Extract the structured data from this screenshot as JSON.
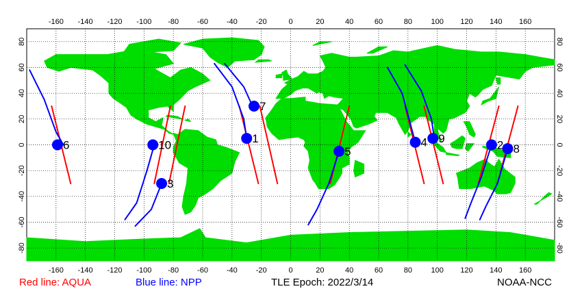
{
  "map": {
    "projection": "equirectangular",
    "lon_range": [
      -180,
      180
    ],
    "lat_range": [
      -90,
      90
    ],
    "lon_ticks": [
      -160,
      -140,
      -120,
      -100,
      -80,
      -60,
      -40,
      -20,
      0,
      20,
      40,
      60,
      80,
      100,
      120,
      140,
      160
    ],
    "lat_ticks": [
      -80,
      -60,
      -40,
      -20,
      0,
      20,
      40,
      60,
      80
    ],
    "grid": true,
    "colors": {
      "land": "#00dd00",
      "ocean": "#ffffff",
      "grid": "#000000",
      "aqua": "#ff0000",
      "npp": "#0000ff",
      "marker": "#0000ff"
    }
  },
  "legend": {
    "aqua_label": "Red line: AQUA",
    "npp_label": "Blue line: NPP",
    "epoch_label": "TLE Epoch: 2022/3/14",
    "credit": "NOAA-NCC"
  },
  "markers": [
    {
      "label": "1",
      "lon": -30,
      "lat": 5
    },
    {
      "label": "2",
      "lon": 137,
      "lat": 0
    },
    {
      "label": "3",
      "lon": -88,
      "lat": -30
    },
    {
      "label": "4",
      "lon": 85,
      "lat": 2
    },
    {
      "label": "5",
      "lon": 33,
      "lat": -5
    },
    {
      "label": "6",
      "lon": -159,
      "lat": 0
    },
    {
      "label": "7",
      "lon": -25,
      "lat": 30
    },
    {
      "label": "8",
      "lon": 148,
      "lat": -3
    },
    {
      "label": "9",
      "lon": 97,
      "lat": 5
    },
    {
      "label": "10",
      "lon": -94,
      "lat": 0
    }
  ],
  "tracks": [
    {
      "sat": "AQUA",
      "points": [
        [
          -163,
          30
        ],
        [
          -150,
          -30
        ]
      ]
    },
    {
      "sat": "AQUA",
      "points": [
        [
          -35,
          30
        ],
        [
          -22,
          -30
        ]
      ]
    },
    {
      "sat": "AQUA",
      "points": [
        [
          -21,
          30
        ],
        [
          -9,
          -30
        ]
      ]
    },
    {
      "sat": "AQUA",
      "points": [
        [
          -82,
          30
        ],
        [
          -93,
          -30
        ]
      ]
    },
    {
      "sat": "AQUA",
      "points": [
        [
          -72,
          30
        ],
        [
          -83,
          -30
        ]
      ]
    },
    {
      "sat": "AQUA",
      "points": [
        [
          40,
          30
        ],
        [
          27,
          -30
        ]
      ]
    },
    {
      "sat": "AQUA",
      "points": [
        [
          78,
          30
        ],
        [
          91,
          -30
        ]
      ]
    },
    {
      "sat": "AQUA",
      "points": [
        [
          91,
          30
        ],
        [
          104,
          -30
        ]
      ]
    },
    {
      "sat": "AQUA",
      "points": [
        [
          142,
          30
        ],
        [
          128,
          -30
        ]
      ]
    },
    {
      "sat": "AQUA",
      "points": [
        [
          155,
          30
        ],
        [
          141,
          -30
        ]
      ]
    },
    {
      "sat": "NPP",
      "points": [
        [
          -178,
          58
        ],
        [
          -168,
          35
        ],
        [
          -160,
          10
        ],
        [
          -155,
          0
        ]
      ]
    },
    {
      "sat": "NPP",
      "points": [
        [
          -52,
          63
        ],
        [
          -40,
          45
        ],
        [
          -32,
          20
        ],
        [
          -30,
          5
        ]
      ]
    },
    {
      "sat": "NPP",
      "points": [
        [
          -45,
          63
        ],
        [
          -32,
          45
        ],
        [
          -26,
          30
        ]
      ]
    },
    {
      "sat": "NPP",
      "points": [
        [
          -93,
          0
        ],
        [
          -98,
          -20
        ],
        [
          -105,
          -45
        ],
        [
          -113,
          -58
        ]
      ]
    },
    {
      "sat": "NPP",
      "points": [
        [
          -88,
          -30
        ],
        [
          -95,
          -50
        ],
        [
          -106,
          -63
        ]
      ]
    },
    {
      "sat": "NPP",
      "points": [
        [
          33,
          -5
        ],
        [
          26,
          -30
        ],
        [
          18,
          -50
        ],
        [
          12,
          -62
        ]
      ]
    },
    {
      "sat": "NPP",
      "points": [
        [
          66,
          60
        ],
        [
          76,
          40
        ],
        [
          85,
          2
        ]
      ]
    },
    {
      "sat": "NPP",
      "points": [
        [
          78,
          62
        ],
        [
          89,
          42
        ],
        [
          96,
          20
        ],
        [
          98,
          5
        ]
      ]
    },
    {
      "sat": "NPP",
      "points": [
        [
          137,
          0
        ],
        [
          130,
          -25
        ],
        [
          123,
          -45
        ],
        [
          119,
          -57
        ]
      ]
    },
    {
      "sat": "NPP",
      "points": [
        [
          148,
          -3
        ],
        [
          141,
          -30
        ],
        [
          133,
          -48
        ],
        [
          129,
          -58
        ]
      ]
    }
  ]
}
